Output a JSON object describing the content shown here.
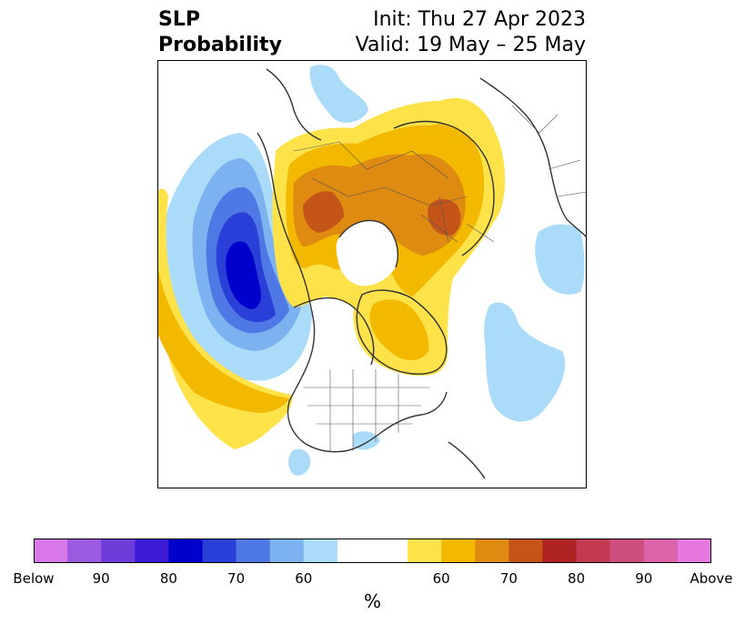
{
  "title": {
    "left_line1": "SLP",
    "left_line2": "Probability",
    "right_line1": "Init: Thu 27 Apr 2023",
    "right_line2": "Valid: 19 May – 25 May"
  },
  "colorbar": {
    "units": "%",
    "below_colors": [
      "#d878e8",
      "#9c5ae0",
      "#6e3cd8",
      "#3c1ad6",
      "#0000cc",
      "#2a3ed8",
      "#4e78e4",
      "#7cb2f0",
      "#aadcfa"
    ],
    "neutral_color": "#ffffff",
    "above_colors": [
      "#fde24a",
      "#f3b800",
      "#df8a10",
      "#c45418",
      "#ae2224",
      "#c23a52",
      "#cc4e7e",
      "#dc62aa",
      "#e678e0"
    ],
    "tick_labels": [
      "Below",
      "90",
      "80",
      "70",
      "60",
      "60",
      "70",
      "80",
      "90",
      "Above"
    ]
  },
  "legend_colors": {
    "blue_60": "#aadcfa",
    "blue_70": "#7cb2f0",
    "blue_80": "#4e78e4",
    "blue_90": "#2a3ed8",
    "blue_max": "#0000cc",
    "yellow_60": "#fde24a",
    "yellow_70": "#f3b800",
    "orange_80": "#df8a10",
    "orange_90": "#c45418"
  }
}
